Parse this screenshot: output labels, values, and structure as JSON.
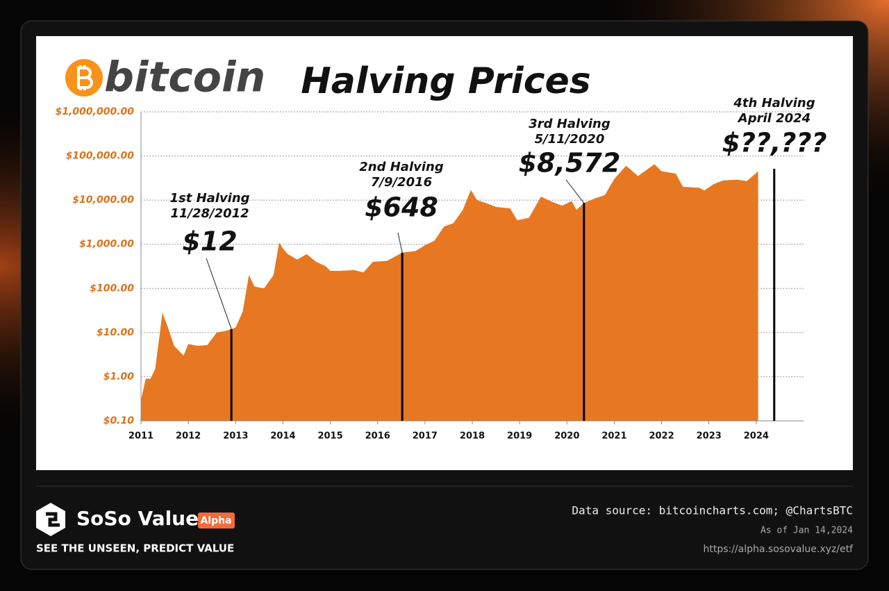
{
  "chart_data": {
    "type": "area",
    "title": "Halving Prices",
    "logo_text": "bitcoin",
    "color": "#e87722",
    "log_scale": true,
    "grid": true,
    "xlim": [
      2011,
      2025
    ],
    "xticks": [
      2011,
      2012,
      2013,
      2014,
      2015,
      2016,
      2017,
      2018,
      2019,
      2020,
      2021,
      2022,
      2023,
      2024
    ],
    "ylim": [
      0.1,
      1000000
    ],
    "yticks": [
      {
        "value": 0.1,
        "label": "$0.10"
      },
      {
        "value": 1,
        "label": "$1.00"
      },
      {
        "value": 10,
        "label": "$10.00"
      },
      {
        "value": 100,
        "label": "$100.00"
      },
      {
        "value": 1000,
        "label": "$1,000.00"
      },
      {
        "value": 10000,
        "label": "$10,000.00"
      },
      {
        "value": 100000,
        "label": "$100,000.00"
      },
      {
        "value": 1000000,
        "label": "$1,000,000.00"
      }
    ],
    "x": [
      2011.0,
      2011.1,
      2011.2,
      2011.3,
      2011.4,
      2011.45,
      2011.55,
      2011.7,
      2011.9,
      2012.0,
      2012.2,
      2012.4,
      2012.6,
      2012.8,
      2012.91,
      2013.0,
      2013.15,
      2013.28,
      2013.4,
      2013.6,
      2013.8,
      2013.92,
      2014.0,
      2014.1,
      2014.3,
      2014.5,
      2014.7,
      2014.9,
      2015.0,
      2015.2,
      2015.5,
      2015.7,
      2015.9,
      2016.2,
      2016.52,
      2016.8,
      2017.0,
      2017.2,
      2017.4,
      2017.6,
      2017.8,
      2017.97,
      2018.1,
      2018.3,
      2018.5,
      2018.8,
      2018.95,
      2019.2,
      2019.45,
      2019.7,
      2019.9,
      2020.1,
      2020.2,
      2020.36,
      2020.6,
      2020.8,
      2021.0,
      2021.25,
      2021.5,
      2021.85,
      2022.0,
      2022.3,
      2022.45,
      2022.8,
      2022.9,
      2023.1,
      2023.3,
      2023.6,
      2023.8,
      2024.04
    ],
    "values": [
      0.3,
      0.9,
      0.9,
      1.5,
      10,
      28,
      15,
      5,
      3,
      5.5,
      5,
      5.2,
      10,
      11,
      12,
      13,
      30,
      200,
      110,
      100,
      200,
      1100,
      800,
      600,
      450,
      600,
      400,
      320,
      250,
      250,
      260,
      230,
      400,
      420,
      648,
      700,
      950,
      1200,
      2500,
      3000,
      6000,
      17000,
      10000,
      8500,
      7000,
      6500,
      3500,
      4000,
      12000,
      9000,
      7500,
      9500,
      6000,
      8572,
      11000,
      13000,
      30000,
      60000,
      35000,
      65000,
      45000,
      40000,
      20000,
      19000,
      16500,
      23000,
      28000,
      29000,
      27000,
      45000
    ],
    "halvings": {
      "names": [
        "1st Halving",
        "2nd Halving",
        "3rd Halving",
        "4th Halving"
      ],
      "dates": [
        "11/28/2012",
        "7/9/2016",
        "5/11/2020",
        "April 2024"
      ],
      "x": [
        2012.91,
        2016.52,
        2020.36,
        2024.38
      ],
      "values": [
        12,
        648,
        8572,
        null
      ],
      "value_labels": [
        "$12",
        "$648",
        "$8,572",
        "$??,???"
      ]
    }
  },
  "footer": {
    "brand": "SoSo Value",
    "badge": "Alpha",
    "tagline": "SEE THE UNSEEN, PREDICT VALUE",
    "source": "Data source: bitcoincharts.com; @ChartsBTC",
    "as_of": "As of Jan 14,2024",
    "url": "https://alpha.sosovalue.xyz/etf"
  }
}
